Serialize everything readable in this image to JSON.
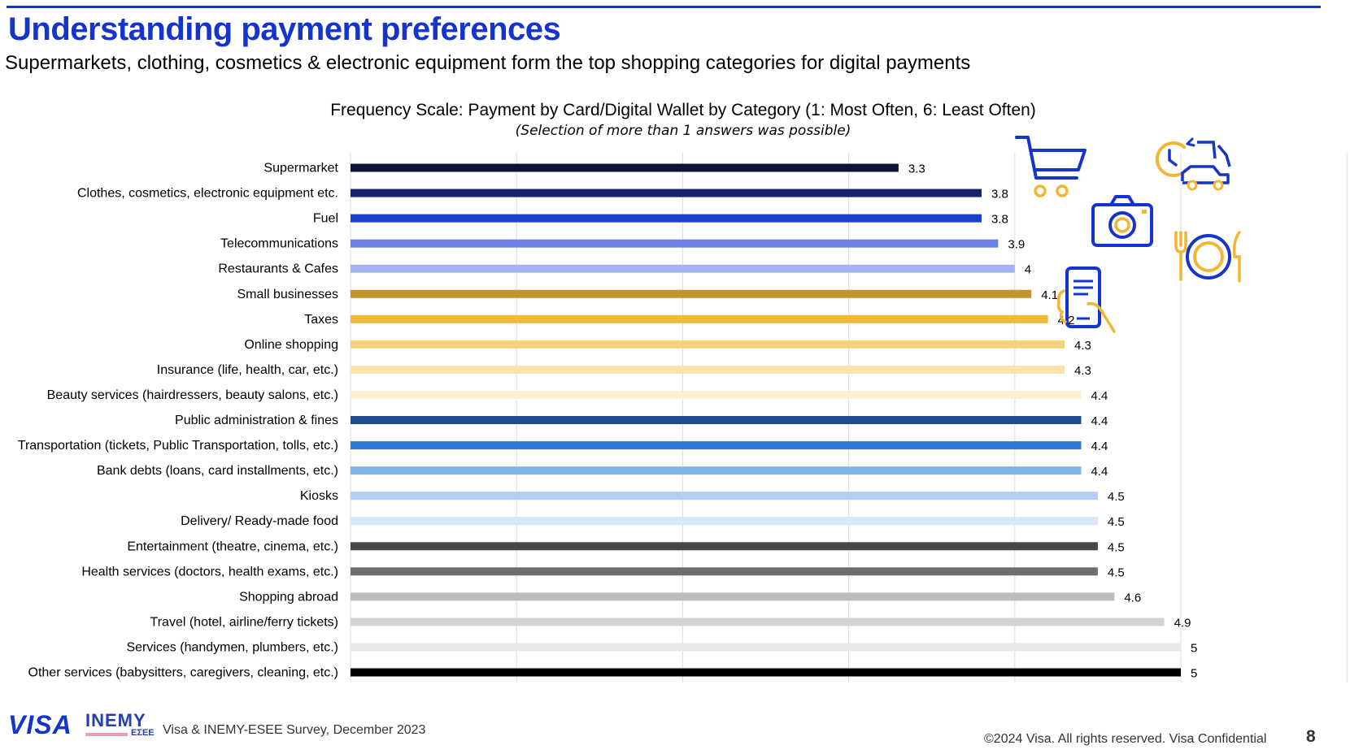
{
  "header": {
    "title": "Understanding payment preferences",
    "subtitle": "Supermarkets, clothing, cosmetics & electronic equipment form the top shopping categories for digital payments"
  },
  "chart_data": {
    "type": "bar",
    "orientation": "horizontal",
    "title": "Frequency Scale: Payment by Card/Digital Wallet by Category (1: Most Often, 6: Least Often)",
    "note": "(Selection of more than 1 answers was possible)",
    "xlim": [
      0,
      6
    ],
    "xticks": [
      "0",
      "1",
      "2",
      "3",
      "4",
      "5",
      "6"
    ],
    "grid": "vertical",
    "categories": [
      "Supermarket",
      "Clothes, cosmetics, electronic equipment etc.",
      "Fuel",
      "Telecommunications",
      "Restaurants & Cafes",
      "Small businesses",
      "Taxes",
      "Online shopping",
      "Insurance (life, health, car, etc.)",
      "Beauty services (hairdressers, beauty salons, etc.)",
      "Public administration & fines",
      "Transportation (tickets, Public Transportation, tolls, etc.)",
      "Bank debts (loans, card installments, etc.)",
      "Kiosks",
      "Delivery/ Ready-made food",
      "Entertainment (theatre, cinema, etc.)",
      "Health services (doctors, health exams, etc.)",
      "Shopping abroad",
      "Travel (hotel, airline/ferry tickets)",
      "Services (handymen, plumbers, etc.)",
      "Other services (babysitters, caregivers, cleaning, etc.)"
    ],
    "values": [
      3.3,
      3.8,
      3.8,
      3.9,
      4,
      4.1,
      4.2,
      4.3,
      4.3,
      4.4,
      4.4,
      4.4,
      4.4,
      4.5,
      4.5,
      4.5,
      4.5,
      4.6,
      4.9,
      5,
      5
    ],
    "value_labels": [
      "3.3",
      "3.8",
      "3.8",
      "3.9",
      "4",
      "4.1",
      "4.2",
      "4.3",
      "4.3",
      "4.4",
      "4.4",
      "4.4",
      "4.4",
      "4.5",
      "4.5",
      "4.5",
      "4.5",
      "4.6",
      "4.9",
      "5",
      "5"
    ],
    "colors": [
      "#0b1436",
      "#14236b",
      "#1c3fc9",
      "#6a82e6",
      "#a5b5ef",
      "#c3932e",
      "#f0b93a",
      "#f7d27a",
      "#fae2a8",
      "#fdf0d5",
      "#1f4b8f",
      "#3279cf",
      "#7eb3ec",
      "#aed0f3",
      "#d6e7f8",
      "#474747",
      "#6e6e6e",
      "#bdbdbd",
      "#d4d4d4",
      "#e8e8e8",
      "#000000"
    ]
  },
  "icons": [
    "shopping-cart-icon",
    "delivery-clock-car-icon",
    "camera-icon",
    "dining-plate-icon",
    "mobile-payment-icon"
  ],
  "footer": {
    "visa_logo": "VISA",
    "inemy_logo": "INEMY",
    "inemy_sub": "ΕΣΕΕ",
    "source": "Visa & INEMY-ESEE Survey, December 2023",
    "copyright": "©2024 Visa. All rights reserved. Visa Confidential",
    "page_number": "8"
  },
  "theme": {
    "brand_blue": "#1434CB",
    "accent_gold": "#F2B632"
  }
}
